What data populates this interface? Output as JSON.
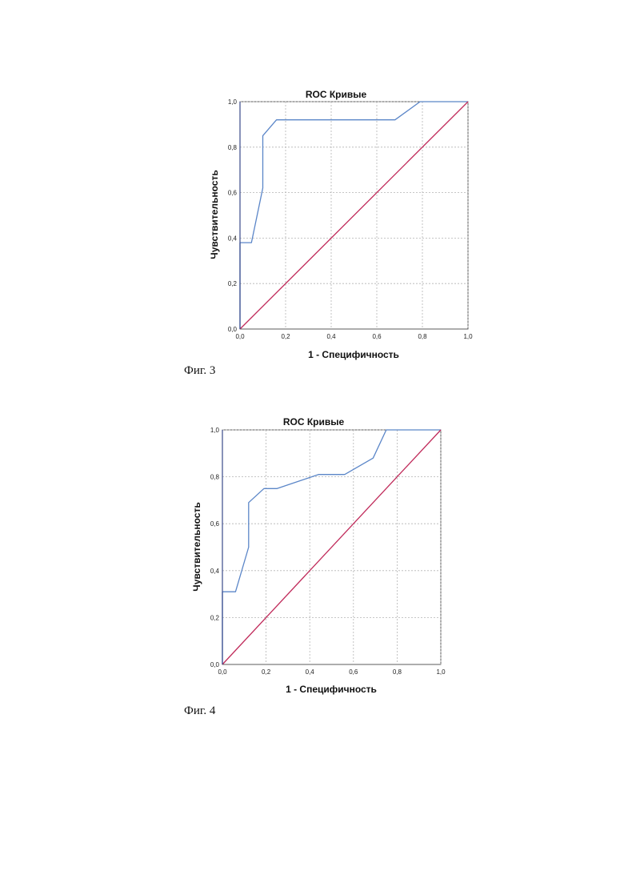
{
  "chart_data": [
    {
      "type": "line",
      "title": "ROC Кривые",
      "xlabel": "1 - Специфичность",
      "ylabel": "Чувствительность",
      "xlim": [
        0,
        1
      ],
      "ylim": [
        0,
        1
      ],
      "xticks": [
        "0,0",
        "0,2",
        "0,4",
        "0,6",
        "0,8",
        "1,0"
      ],
      "yticks": [
        "0,0",
        "0,2",
        "0,4",
        "0,6",
        "0,8",
        "1,0"
      ],
      "grid": true,
      "series": [
        {
          "color": "#5b86c8",
          "x": [
            0,
            0,
            0.05,
            0.1,
            0.1,
            0.16,
            0.68,
            0.79,
            1.0
          ],
          "y": [
            0,
            0.38,
            0.38,
            0.62,
            0.85,
            0.92,
            0.92,
            1.0,
            1.0
          ]
        },
        {
          "color": "#c02a5a",
          "x": [
            0,
            1
          ],
          "y": [
            0,
            1
          ]
        }
      ],
      "caption": "Фиг. 3"
    },
    {
      "type": "line",
      "title": "ROC Кривые",
      "xlabel": "1 - Специфичность",
      "ylabel": "Чувствительность",
      "xlim": [
        0,
        1
      ],
      "ylim": [
        0,
        1
      ],
      "xticks": [
        "0,0",
        "0,2",
        "0,4",
        "0,6",
        "0,8",
        "1,0"
      ],
      "yticks": [
        "0,0",
        "0,2",
        "0,4",
        "0,6",
        "0,8",
        "1,0"
      ],
      "grid": true,
      "series": [
        {
          "color": "#5b86c8",
          "x": [
            0,
            0,
            0.06,
            0.12,
            0.12,
            0.19,
            0.25,
            0.44,
            0.56,
            0.69,
            0.75,
            1.0
          ],
          "y": [
            0,
            0.31,
            0.31,
            0.5,
            0.69,
            0.75,
            0.75,
            0.81,
            0.81,
            0.88,
            1.0,
            1.0
          ]
        },
        {
          "color": "#c02a5a",
          "x": [
            0,
            1
          ],
          "y": [
            0,
            1
          ]
        }
      ],
      "caption": "Фиг. 4"
    }
  ]
}
